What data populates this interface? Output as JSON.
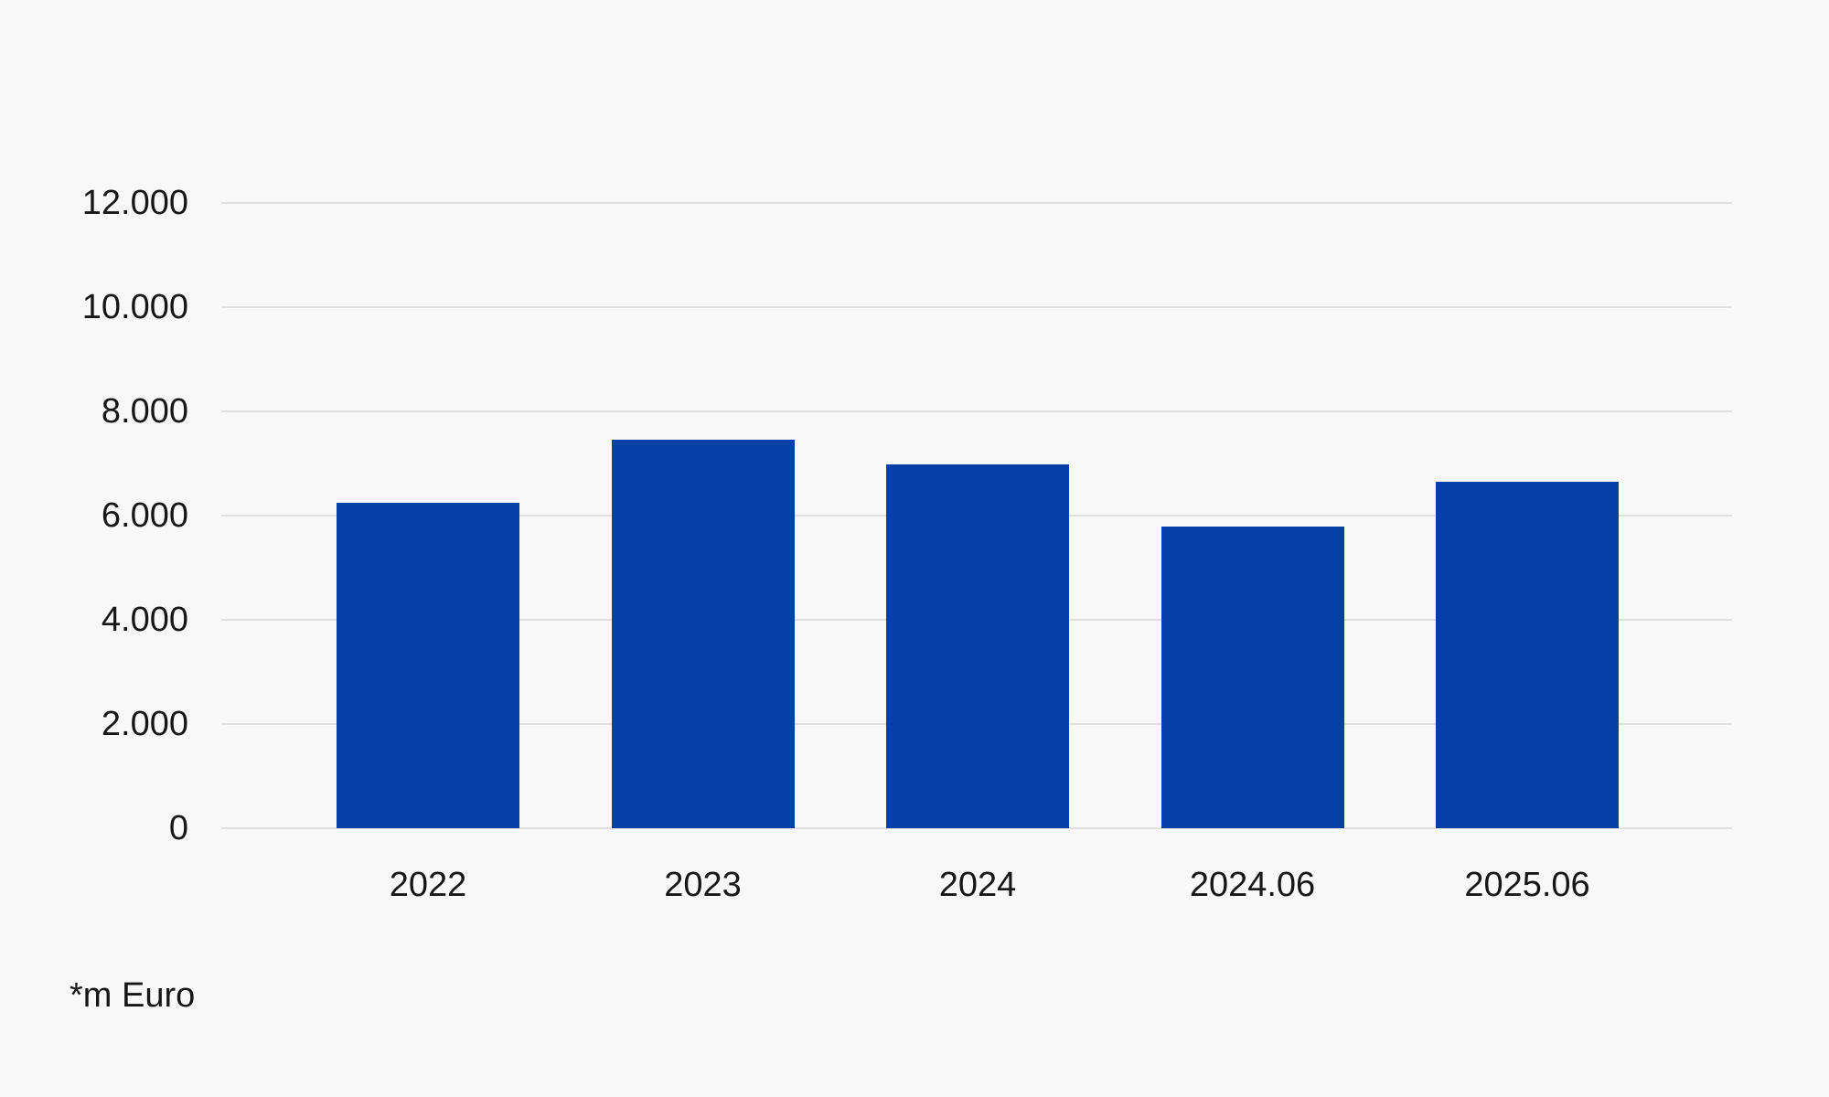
{
  "chart_data": {
    "type": "bar",
    "title": "",
    "xlabel": "",
    "ylabel": "",
    "categories": [
      "2022",
      "2023",
      "2024",
      "2024.06",
      "2025.06"
    ],
    "values": [
      6240,
      7460,
      6990,
      5790,
      6650
    ],
    "ylim": [
      0,
      12000
    ],
    "ytick_values": [
      12000,
      10000,
      8000,
      6000,
      4000,
      2000,
      0
    ],
    "ytick_labels": [
      "12.000",
      "10.000",
      "8.000",
      "6.000",
      "4.000",
      "2.000",
      "0"
    ],
    "grid": true,
    "legend": "none",
    "bar_color": "#0540a6"
  },
  "footnote": "*m Euro",
  "colors": {
    "background": "#f8f8f8",
    "gridline": "#e0e0e0",
    "text": "#161616",
    "bar": "#0540a6"
  }
}
